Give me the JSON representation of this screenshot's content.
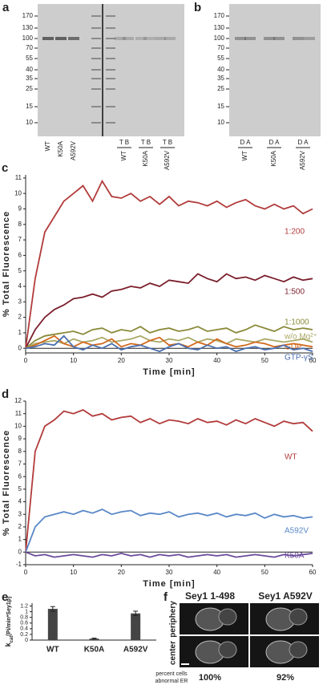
{
  "gel_a": {
    "panel": "a",
    "markers": [
      170,
      130,
      100,
      70,
      55,
      40,
      35,
      25,
      15,
      10
    ],
    "lanes": [
      "WT",
      "K50A",
      "A592V"
    ],
    "groups": [
      {
        "lanes": "T B",
        "name": "WT"
      },
      {
        "lanes": "T B",
        "name": "K50A"
      },
      {
        "lanes": "T B",
        "name": "A592V"
      }
    ]
  },
  "gel_b": {
    "panel": "b",
    "markers": [
      170,
      130,
      100,
      70,
      55,
      40,
      35,
      25,
      15,
      10
    ],
    "groups": [
      {
        "lanes": "D A",
        "name": "WT"
      },
      {
        "lanes": "D A",
        "name": "K50A"
      },
      {
        "lanes": "D A",
        "name": "A592V"
      }
    ]
  },
  "chart_data": [
    {
      "type": "line",
      "panel": "c",
      "xlabel": "Time [min]",
      "ylabel": "% Total Fluorescence",
      "xlim": [
        0,
        60
      ],
      "xticks": [
        0,
        10,
        20,
        30,
        40,
        50,
        60
      ],
      "ylim": [
        -0.3,
        11.2
      ],
      "yticks": [
        0,
        1,
        2,
        3,
        4,
        5,
        6,
        7,
        8,
        9,
        10,
        11
      ],
      "x": [
        0,
        2,
        4,
        6,
        8,
        10,
        12,
        14,
        16,
        18,
        20,
        22,
        24,
        26,
        28,
        30,
        32,
        34,
        36,
        38,
        40,
        42,
        44,
        46,
        48,
        50,
        52,
        54,
        56,
        58,
        60
      ],
      "series": [
        {
          "name": "1:200",
          "color": "#b23b3b",
          "values": [
            0,
            4.5,
            7.5,
            8.5,
            9.5,
            10,
            10.5,
            9.5,
            10.8,
            9.8,
            9.7,
            10,
            9.5,
            9.8,
            9.3,
            9.8,
            9.2,
            9.5,
            9.4,
            9.2,
            9.5,
            9.1,
            9.4,
            9.6,
            9.2,
            9.0,
            9.3,
            9.0,
            9.2,
            8.7,
            9.0
          ]
        },
        {
          "name": "1:500",
          "color": "#7a1f2c",
          "values": [
            0,
            1.2,
            2,
            2.5,
            2.8,
            3.2,
            3.3,
            3.5,
            3.3,
            3.7,
            3.8,
            4.0,
            3.9,
            4.2,
            4.0,
            4.4,
            4.3,
            4.2,
            4.8,
            4.5,
            4.3,
            4.8,
            4.5,
            4.6,
            4.4,
            4.7,
            4.5,
            4.3,
            4.6,
            4.4,
            4.5
          ]
        },
        {
          "name": "1:1000",
          "color": "#8a8a3a",
          "values": [
            0,
            0.5,
            0.8,
            0.9,
            1.0,
            1.1,
            0.9,
            1.2,
            1.3,
            1.0,
            1.2,
            1.1,
            1.4,
            1.0,
            1.2,
            1.3,
            1.1,
            1.2,
            1.4,
            1.1,
            1.2,
            1.3,
            1.0,
            1.2,
            1.5,
            1.3,
            1.1,
            1.4,
            1.2,
            1.3,
            1.2
          ]
        },
        {
          "name": "w/o Mg²⁺",
          "color": "#a9a865",
          "values": [
            0,
            0.3,
            0.4,
            0.5,
            0.3,
            0.6,
            0.4,
            0.5,
            0.7,
            0.4,
            0.5,
            0.6,
            0.8,
            0.5,
            0.4,
            0.6,
            0.5,
            0.7,
            0.4,
            0.6,
            0.5,
            0.3,
            0.6,
            0.5,
            0.4,
            0.6,
            0.5,
            0.4,
            0.5,
            0.6,
            0.4
          ]
        },
        {
          "name": "GDP",
          "color": "#d2691e",
          "values": [
            0,
            0.2,
            0.5,
            0.8,
            0.3,
            0.1,
            0.4,
            0.2,
            0.3,
            0.6,
            0.1,
            0.3,
            0.2,
            0.5,
            0.7,
            0.2,
            0.3,
            0.1,
            0.4,
            0.2,
            0.6,
            0.3,
            0.1,
            0.2,
            0.4,
            0.3,
            0.1,
            0.2,
            0.3,
            0.2,
            0.1
          ]
        },
        {
          "name": "GTP-γS",
          "color": "#4a6fb0",
          "values": [
            0,
            0.1,
            0.3,
            0.2,
            0.8,
            0.1,
            -0.1,
            0.2,
            0,
            0.3,
            -0.1,
            0.1,
            0.2,
            0,
            -0.2,
            0.1,
            0.3,
            0,
            -0.1,
            0.2,
            0,
            0.1,
            -0.2,
            0,
            0.1,
            -0.1,
            0,
            0.2,
            -0.1,
            0,
            -0.2
          ]
        }
      ]
    },
    {
      "type": "line",
      "panel": "d",
      "xlabel": "Time [min]",
      "ylabel": "% Total Fluorescence",
      "xlim": [
        0,
        60
      ],
      "xticks": [
        0,
        10,
        20,
        30,
        40,
        50,
        60
      ],
      "ylim": [
        -1,
        12
      ],
      "yticks": [
        -1,
        0,
        1,
        2,
        3,
        4,
        5,
        6,
        7,
        8,
        9,
        10,
        11,
        12
      ],
      "x": [
        0,
        2,
        4,
        6,
        8,
        10,
        12,
        14,
        16,
        18,
        20,
        22,
        24,
        26,
        28,
        30,
        32,
        34,
        36,
        38,
        40,
        42,
        44,
        46,
        48,
        50,
        52,
        54,
        56,
        58,
        60
      ],
      "series": [
        {
          "name": "WT",
          "color": "#b23b3b",
          "values": [
            0,
            8,
            10,
            10.5,
            11.2,
            11,
            11.3,
            10.8,
            11,
            10.5,
            10.7,
            10.8,
            10.3,
            10.6,
            10.2,
            10.5,
            10.4,
            10.2,
            10.6,
            10.3,
            10.4,
            10.1,
            10.5,
            10.2,
            10.6,
            10.3,
            10.0,
            10.4,
            10.2,
            10.3,
            9.6
          ]
        },
        {
          "name": "A592V",
          "color": "#5a88c8",
          "values": [
            0,
            2,
            2.8,
            3,
            3.2,
            3.0,
            3.3,
            3.1,
            3.4,
            3.0,
            3.2,
            3.3,
            2.9,
            3.1,
            3.0,
            3.2,
            2.8,
            3.0,
            3.1,
            2.9,
            3.1,
            2.8,
            3.0,
            2.9,
            3.1,
            2.7,
            3.0,
            2.8,
            2.9,
            2.7,
            2.8
          ]
        },
        {
          "name": "K50A",
          "color": "#6a4a9a",
          "values": [
            0,
            -0.3,
            -0.2,
            -0.4,
            -0.3,
            -0.2,
            -0.3,
            -0.4,
            -0.2,
            -0.3,
            -0.1,
            -0.3,
            -0.2,
            -0.4,
            -0.2,
            -0.3,
            -0.2,
            -0.4,
            -0.3,
            -0.2,
            -0.3,
            -0.2,
            -0.4,
            -0.3,
            -0.2,
            -0.3,
            -0.4,
            -0.2,
            -0.3,
            -0.2,
            -0.1
          ]
        }
      ]
    },
    {
      "type": "bar",
      "panel": "e",
      "ylabel_main": "k",
      "ylabel_sub": "cat",
      "ylabel_rest": "[Pi/min*Sey1p]",
      "categories": [
        "WT",
        "K50A",
        "A592V"
      ],
      "values": [
        1.1,
        0.05,
        0.94
      ],
      "errors": [
        0.08,
        0.02,
        0.08
      ],
      "color": "#444444",
      "ylim": [
        0,
        1.3
      ],
      "yticks": [
        0,
        0.2,
        0.4,
        0.6,
        0.8,
        1,
        1.2
      ]
    }
  ],
  "microscopy": {
    "panel": "f",
    "columns": [
      "Sey1 1-498",
      "Sey1 A592V"
    ],
    "rows": [
      "periphery",
      "center"
    ],
    "footer": [
      "percent cells",
      "abnormal ER"
    ],
    "percentages": [
      "100%",
      "92%"
    ]
  }
}
